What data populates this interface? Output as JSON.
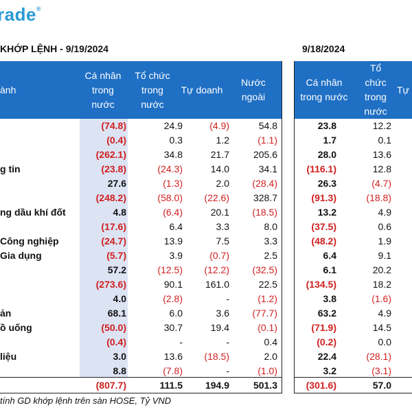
{
  "logo": {
    "text": "rade",
    "mark": "®"
  },
  "title_left": "KHỚP LỆNH - 9/19/2024",
  "title_right": "9/18/2024",
  "header_left": {
    "col0": "ành",
    "col1": "Cá nhân\ntrong\nnước",
    "col2": "Tổ chức\ntrong\nnước",
    "col3": "Tự doanh",
    "col4": "Nước\nngoài"
  },
  "header_right": {
    "col1": "Cá nhân\ntrong nước",
    "col2": "Tổ\nchức\ntrong\nnước",
    "col3": "Tự"
  },
  "rows": [
    {
      "label": "",
      "v": [
        "(74.8)",
        "24.9",
        "(4.9)",
        "54.8",
        "23.8",
        "12.2"
      ]
    },
    {
      "label": "",
      "v": [
        "(0.4)",
        "0.3",
        "1.2",
        "(1.1)",
        "1.7",
        "0.1"
      ]
    },
    {
      "label": "",
      "v": [
        "(262.1)",
        "34.8",
        "21.7",
        "205.6",
        "28.0",
        "13.6"
      ]
    },
    {
      "label": "g tin",
      "v": [
        "(23.8)",
        "(24.3)",
        "14.0",
        "34.1",
        "(116.1)",
        "12.8"
      ]
    },
    {
      "label": "",
      "v": [
        "27.6",
        "(1.3)",
        "2.0",
        "(28.4)",
        "26.3",
        "(4.7)"
      ]
    },
    {
      "label": "",
      "v": [
        "(248.2)",
        "(58.0)",
        "(22.6)",
        "328.7",
        "(91.3)",
        "(18.8)"
      ]
    },
    {
      "label": "ng dầu khí đốt",
      "v": [
        "4.8",
        "(6.4)",
        "20.1",
        "(18.5)",
        "13.2",
        "4.9"
      ]
    },
    {
      "label": "",
      "v": [
        "(17.6)",
        "6.4",
        "3.3",
        "8.0",
        "(37.5)",
        "0.6"
      ]
    },
    {
      "label": "Công nghiệp",
      "v": [
        "(24.7)",
        "13.9",
        "7.5",
        "3.3",
        "(48.2)",
        "1.9"
      ]
    },
    {
      "label": "Gia dụng",
      "v": [
        "(5.7)",
        "3.9",
        "(0.7)",
        "2.5",
        "6.4",
        "9.1"
      ]
    },
    {
      "label": "",
      "v": [
        "57.2",
        "(12.5)",
        "(12.2)",
        "(32.5)",
        "6.1",
        "20.2"
      ]
    },
    {
      "label": "",
      "v": [
        "(273.6)",
        "90.1",
        "161.0",
        "22.5",
        "(134.5)",
        "18.2"
      ]
    },
    {
      "label": "",
      "v": [
        "4.0",
        "(2.8)",
        "-",
        "(1.2)",
        "3.8",
        "(1.6)"
      ]
    },
    {
      "label": "ản",
      "v": [
        "68.1",
        "6.0",
        "3.6",
        "(77.7)",
        "63.2",
        "4.9"
      ]
    },
    {
      "label": "ồ uống",
      "v": [
        "(50.0)",
        "30.7",
        "19.4",
        "(0.1)",
        "(71.9)",
        "14.5"
      ]
    },
    {
      "label": "",
      "v": [
        "(0.4)",
        "-",
        "-",
        "0.4",
        "(0.2)",
        "0.0"
      ]
    },
    {
      "label": " liệu",
      "v": [
        "3.0",
        "13.6",
        "(18.5)",
        "2.0",
        "22.4",
        "(28.1)"
      ]
    },
    {
      "label": "",
      "v": [
        "8.8",
        "(7.8)",
        "-",
        "(1.0)",
        "3.2",
        "(3.1)"
      ]
    }
  ],
  "total": {
    "v": [
      "(807.7)",
      "111.5",
      "194.9",
      "501.3",
      "(301.6)",
      "57.0"
    ]
  },
  "footnote": " tính GD khớp lệnh trên sàn HOSE, Tỷ VND",
  "colors": {
    "header_bg": "#1f6fc4",
    "highlight": "#dce3f3",
    "negative": "#d01f1f",
    "logo": "#2a9ad6"
  }
}
